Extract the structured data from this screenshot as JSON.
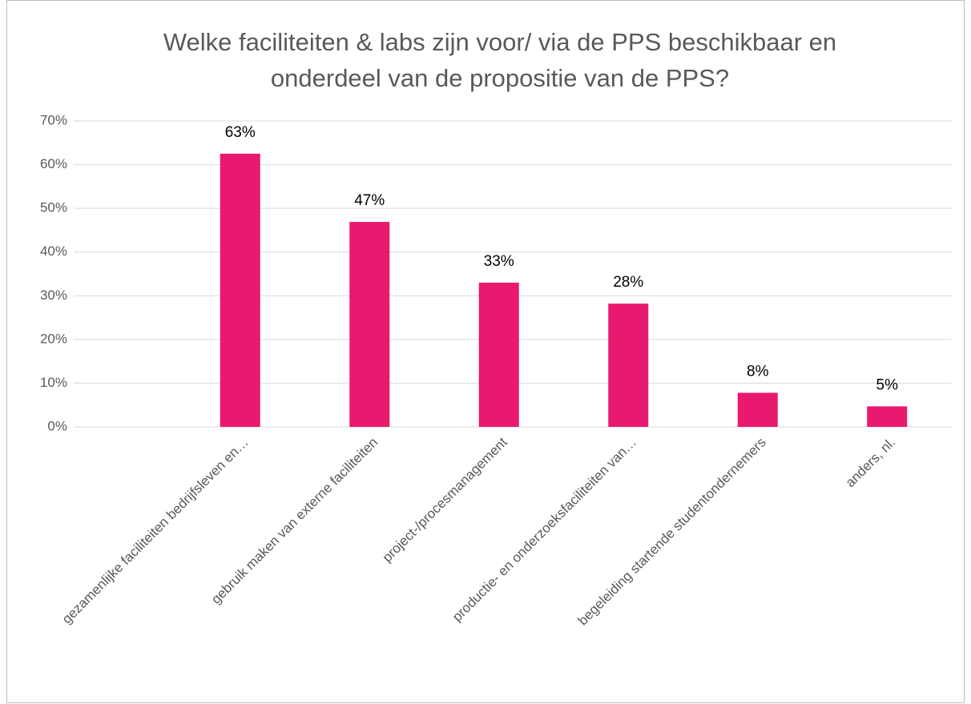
{
  "chart_data": {
    "type": "bar",
    "title": [
      "Welke faciliteiten & labs zijn voor/ via de PPS beschikbaar en",
      "onderdeel van de propositie van de PPS?"
    ],
    "categories": [
      "gezamenlijke faciliteiten bedrijfsleven en…",
      "gebruik maken van externe faciliteiten",
      "project-/procesmanagement",
      "productie- en onderzoeksfaciliteiten van…",
      "begeleiding startende studentondernemers",
      "anders, nl."
    ],
    "values": [
      62.5,
      46.9,
      33,
      28.2,
      7.8,
      4.7
    ],
    "value_labels": [
      "63%",
      "47%",
      "33%",
      "28%",
      "8%",
      "5%"
    ],
    "color": "#e8196e",
    "ylim": [
      0,
      70
    ],
    "yticks": [
      {
        "value": 0,
        "label": "0%"
      },
      {
        "value": 10,
        "label": "10%"
      },
      {
        "value": 20,
        "label": "20%"
      },
      {
        "value": 30,
        "label": "30%"
      },
      {
        "value": 40,
        "label": "40%"
      },
      {
        "value": 50,
        "label": "50%"
      },
      {
        "value": 60,
        "label": "60%"
      },
      {
        "value": 70,
        "label": "70%"
      }
    ],
    "grid": true
  }
}
